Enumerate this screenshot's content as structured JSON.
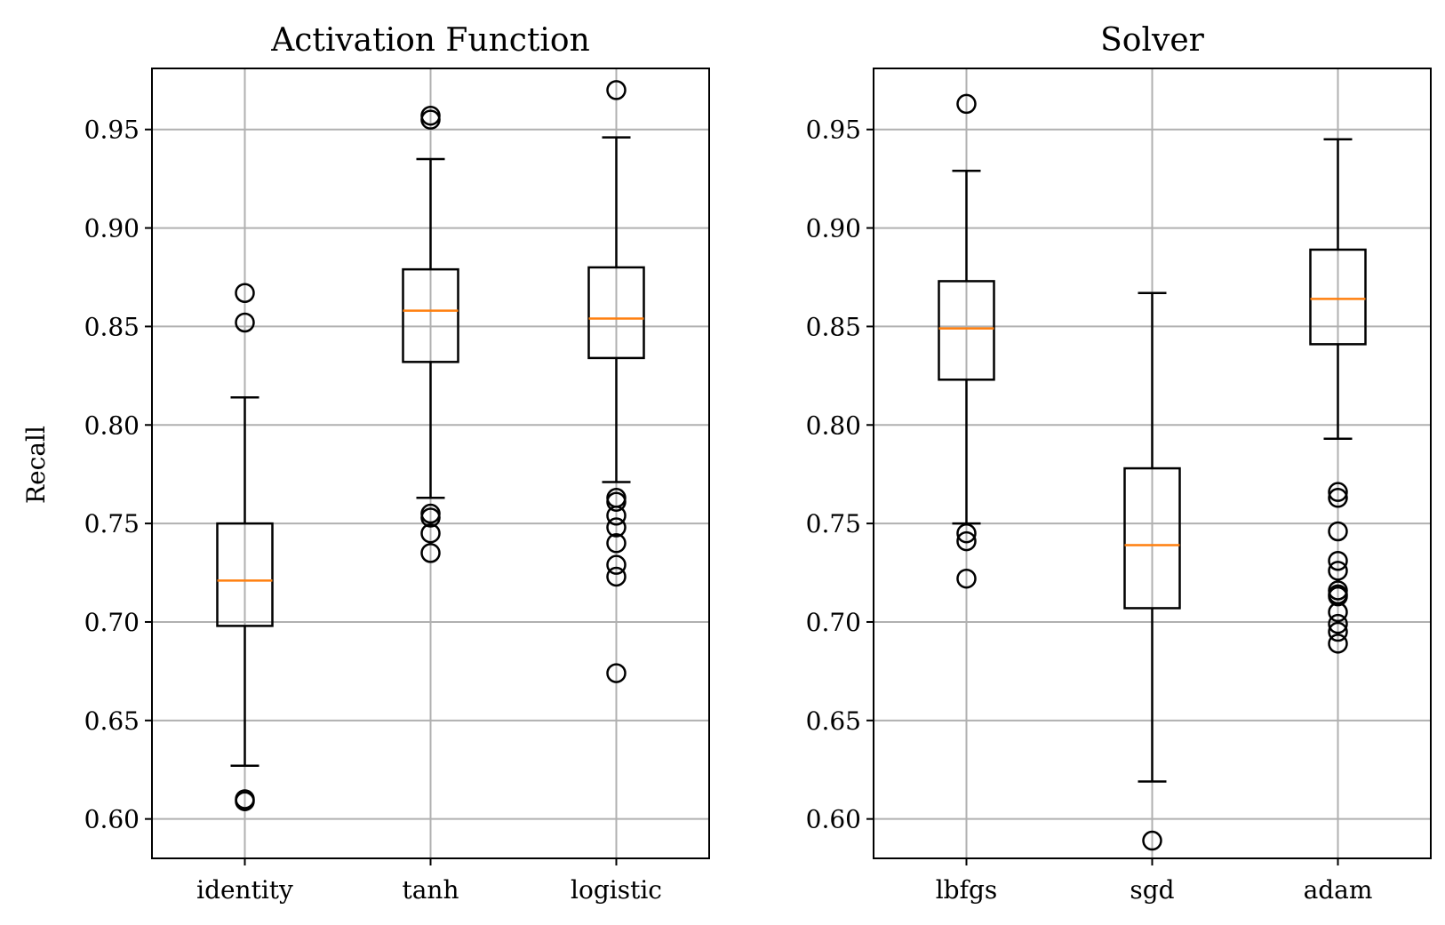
{
  "figure": {
    "ylabel": "Recall"
  },
  "chart_data": [
    {
      "type": "box",
      "title": "Activation Function",
      "xlabel": "",
      "ylabel": "Recall",
      "ylim": [
        0.58,
        0.981
      ],
      "yticks": [
        "0.60",
        "0.65",
        "0.70",
        "0.75",
        "0.80",
        "0.85",
        "0.90",
        "0.95"
      ],
      "grid": true,
      "categories": [
        "identity",
        "tanh",
        "logistic"
      ],
      "boxes": [
        {
          "category": "identity",
          "whislo": 0.627,
          "q1": 0.698,
          "median": 0.721,
          "q3": 0.75,
          "whishi": 0.814,
          "fliers": [
            0.867,
            0.852,
            0.61,
            0.609
          ]
        },
        {
          "category": "tanh",
          "whislo": 0.763,
          "q1": 0.832,
          "median": 0.858,
          "q3": 0.879,
          "whishi": 0.935,
          "fliers": [
            0.957,
            0.955,
            0.755,
            0.753,
            0.745,
            0.735
          ]
        },
        {
          "category": "logistic",
          "whislo": 0.771,
          "q1": 0.834,
          "median": 0.854,
          "q3": 0.88,
          "whishi": 0.946,
          "fliers": [
            0.97,
            0.763,
            0.761,
            0.754,
            0.748,
            0.74,
            0.729,
            0.723,
            0.674
          ]
        }
      ]
    },
    {
      "type": "box",
      "title": "Solver",
      "xlabel": "",
      "ylabel": "",
      "ylim": [
        0.58,
        0.981
      ],
      "yticks": [
        "0.60",
        "0.65",
        "0.70",
        "0.75",
        "0.80",
        "0.85",
        "0.90",
        "0.95"
      ],
      "grid": true,
      "categories": [
        "lbfgs",
        "sgd",
        "adam"
      ],
      "boxes": [
        {
          "category": "lbfgs",
          "whislo": 0.75,
          "q1": 0.823,
          "median": 0.849,
          "q3": 0.873,
          "whishi": 0.929,
          "fliers": [
            0.963,
            0.745,
            0.741,
            0.722
          ]
        },
        {
          "category": "sgd",
          "whislo": 0.619,
          "q1": 0.707,
          "median": 0.739,
          "q3": 0.778,
          "whishi": 0.867,
          "fliers": [
            0.589
          ]
        },
        {
          "category": "adam",
          "whislo": 0.793,
          "q1": 0.841,
          "median": 0.864,
          "q3": 0.889,
          "whishi": 0.945,
          "fliers": [
            0.766,
            0.763,
            0.746,
            0.731,
            0.726,
            0.716,
            0.714,
            0.713,
            0.705,
            0.699,
            0.695,
            0.689
          ]
        }
      ]
    }
  ]
}
